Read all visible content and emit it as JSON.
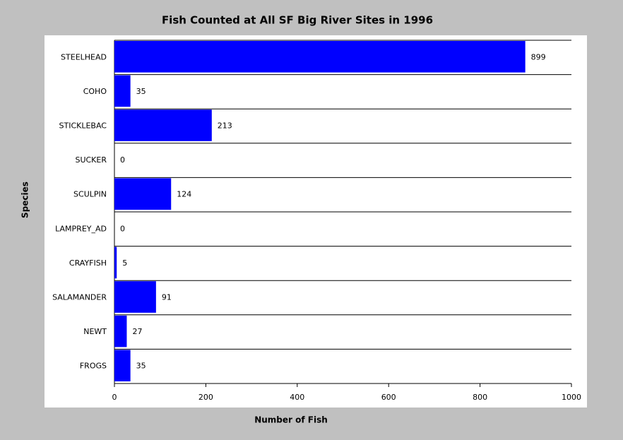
{
  "chart_data": {
    "type": "bar",
    "orientation": "horizontal",
    "title": "Fish Counted at All SF Big River Sites in 1996",
    "x_label": "Number of Fish",
    "y_label": "Species",
    "categories": [
      "STEELHEAD",
      "COHO",
      "STICKLEBAC",
      "SUCKER",
      "SCULPIN",
      "LAMPREY_AD",
      "CRAYFISH",
      "SALAMANDER",
      "NEWT",
      "FROGS"
    ],
    "values": [
      899,
      35,
      213,
      0,
      124,
      0,
      5,
      91,
      27,
      35
    ],
    "color": "#0000ff",
    "xlim": [
      0,
      1000
    ],
    "xticks": [
      0,
      200,
      400,
      600,
      800,
      1000
    ]
  }
}
